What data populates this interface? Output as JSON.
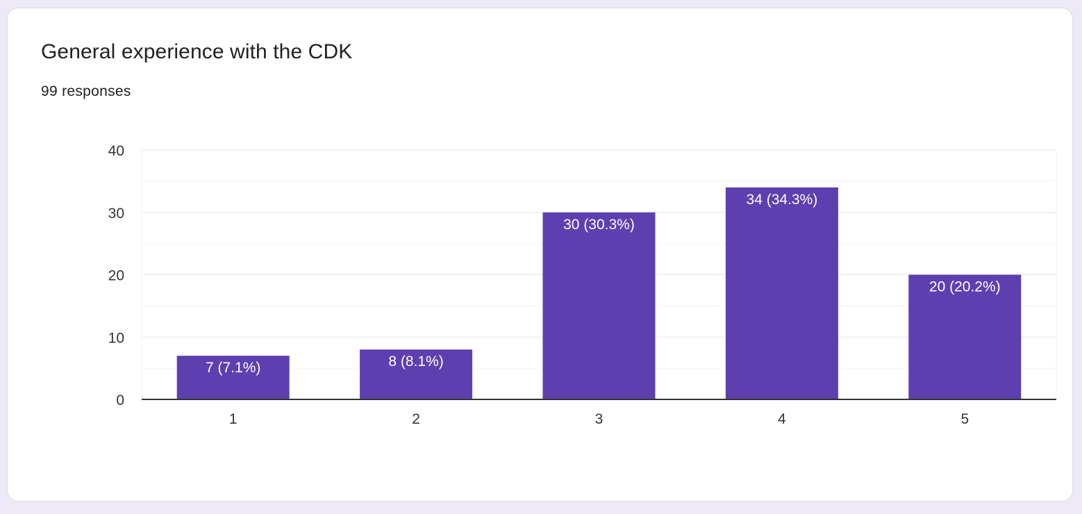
{
  "card": {
    "title": "General experience with the CDK",
    "responses": "99 responses"
  },
  "colors": {
    "page_background": "#ede9f7",
    "bar": "#5e3fb0",
    "grid_major": "#e6e6e6",
    "grid_minor": "#f2f2f2",
    "axis": "#333333"
  },
  "chart_data": {
    "type": "bar",
    "title": "",
    "xlabel": "",
    "ylabel": "",
    "categories": [
      "1",
      "2",
      "3",
      "4",
      "5"
    ],
    "values": [
      7,
      8,
      30,
      34,
      20
    ],
    "data_labels": [
      "7 (7.1%)",
      "8 (8.1%)",
      "30 (30.3%)",
      "34 (34.3%)",
      "20 (20.2%)"
    ],
    "ylim": [
      0,
      40
    ],
    "yticks": [
      0,
      10,
      20,
      30,
      40
    ],
    "ytick_labels": [
      "0",
      "10",
      "20",
      "30",
      "40"
    ],
    "grid": true,
    "legend": "none"
  }
}
